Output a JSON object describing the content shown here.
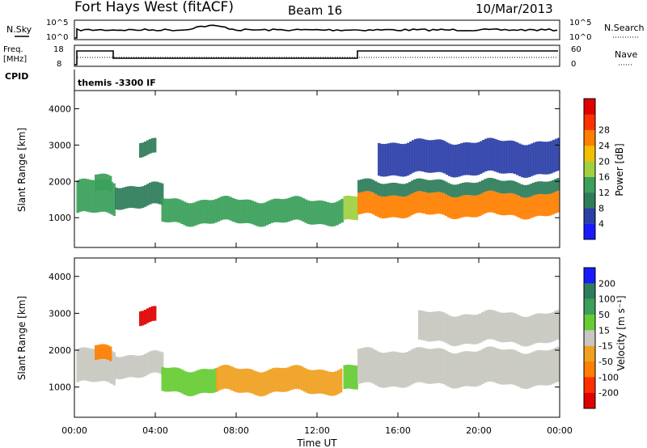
{
  "header": {
    "station": "Fort Hays West (fitACF)",
    "beam": "Beam 16",
    "date": "10/Mar/2013"
  },
  "noise_panel": {
    "left_label": "N.Sky",
    "right_label": "N.Search",
    "tick_top": "10^5",
    "tick_bottom": "10^0"
  },
  "freq_panel": {
    "label_line1": "Freq.",
    "label_line2": "[MHz]",
    "cpid_label": "CPID",
    "left_ticks": [
      "18",
      "8"
    ],
    "right_label": "Nave",
    "right_ticks": [
      "60",
      "0"
    ],
    "cpid_name": "themis -3300 IF"
  },
  "colors": {
    "power": [
      "#1a1aff",
      "#2b3fa8",
      "#2e7d5a",
      "#3aa05a",
      "#a0d040",
      "#f0c000",
      "#ff8000",
      "#ff3000",
      "#e00000"
    ],
    "velocity": [
      "#1a1aff",
      "#2e7d5a",
      "#3aa05a",
      "#66cc33",
      "#c8c8c0",
      "#f0a020",
      "#ff8000",
      "#ff3000",
      "#e00000"
    ]
  },
  "chart_data": [
    {
      "type": "heatmap",
      "name": "power",
      "ylabel": "Slant Range [km]",
      "yticks": [
        "1000",
        "2000",
        "3000",
        "4000"
      ],
      "ylim": [
        180,
        4500
      ],
      "xlim": [
        0,
        24
      ],
      "colorbar_label": "Power [dB]",
      "colorbar_ticks": [
        "4",
        "8",
        "12",
        "16",
        "20",
        "24",
        "28"
      ],
      "colorbar_range": [
        0,
        32
      ],
      "regions": [
        {
          "t0": 0.1,
          "t1": 2.0,
          "r0": 1100,
          "r1": 2000,
          "v": 14
        },
        {
          "t0": 1.0,
          "t1": 1.8,
          "r0": 1700,
          "r1": 2150,
          "v": 12
        },
        {
          "t0": 2.0,
          "t1": 4.3,
          "r0": 1300,
          "r1": 1900,
          "v": 9
        },
        {
          "t0": 3.2,
          "t1": 4.0,
          "r0": 2700,
          "r1": 3100,
          "v": 10
        },
        {
          "t0": 4.3,
          "t1": 13.2,
          "r0": 850,
          "r1": 1500,
          "v": 15
        },
        {
          "t0": 13.3,
          "t1": 14.0,
          "r0": 900,
          "r1": 1550,
          "v": 17
        },
        {
          "t0": 14.0,
          "t1": 23.9,
          "r0": 1050,
          "r1": 1650,
          "v": 24
        },
        {
          "t0": 14.0,
          "t1": 23.9,
          "r0": 1650,
          "r1": 2000,
          "v": 11
        },
        {
          "t0": 15.0,
          "t1": 23.9,
          "r0": 2200,
          "r1": 3100,
          "v": 5
        }
      ]
    },
    {
      "type": "heatmap",
      "name": "velocity",
      "xlabel": "Time UT",
      "ylabel": "Slant Range [km]",
      "yticks": [
        "1000",
        "2000",
        "3000",
        "4000"
      ],
      "ylim": [
        180,
        4500
      ],
      "xticks": [
        "00:00",
        "04:00",
        "08:00",
        "12:00",
        "16:00",
        "20:00",
        "00:00"
      ],
      "xlim": [
        0,
        24
      ],
      "colorbar_label": "Velocity [m s⁻¹]",
      "colorbar_ticks": [
        "200",
        "100",
        "50",
        "15",
        "-15",
        "-50",
        "-100",
        "-200"
      ],
      "regions": [
        {
          "t0": 0.1,
          "t1": 2.0,
          "r0": 1100,
          "r1": 2000,
          "v": 0
        },
        {
          "t0": 1.0,
          "t1": 1.8,
          "r0": 1700,
          "r1": 2100,
          "v": -60
        },
        {
          "t0": 2.0,
          "t1": 4.3,
          "r0": 1300,
          "r1": 1900,
          "v": 0
        },
        {
          "t0": 3.2,
          "t1": 4.0,
          "r0": 2700,
          "r1": 3100,
          "v": -250
        },
        {
          "t0": 4.3,
          "t1": 7.0,
          "r0": 850,
          "r1": 1500,
          "v": 30
        },
        {
          "t0": 7.0,
          "t1": 13.2,
          "r0": 850,
          "r1": 1500,
          "v": -40
        },
        {
          "t0": 13.3,
          "t1": 14.0,
          "r0": 900,
          "r1": 1550,
          "v": 40
        },
        {
          "t0": 14.0,
          "t1": 23.9,
          "r0": 1050,
          "r1": 2000,
          "v": 0
        },
        {
          "t0": 17.0,
          "t1": 23.9,
          "r0": 2200,
          "r1": 3000,
          "v": 0
        }
      ]
    }
  ]
}
